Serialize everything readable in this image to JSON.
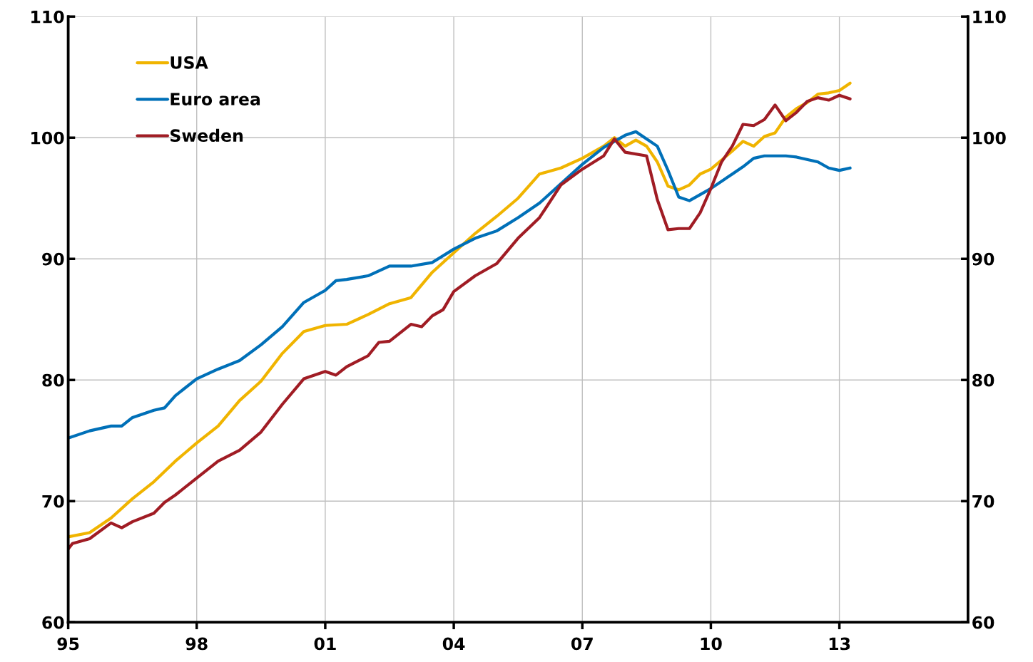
{
  "chart_data": {
    "type": "line",
    "xlim": [
      1995,
      2016
    ],
    "xticks": [
      {
        "value": 1995,
        "label": "95"
      },
      {
        "value": 1998,
        "label": "98"
      },
      {
        "value": 2001,
        "label": "01"
      },
      {
        "value": 2004,
        "label": "04"
      },
      {
        "value": 2007,
        "label": "07"
      },
      {
        "value": 2010,
        "label": "10"
      },
      {
        "value": 2013,
        "label": "13"
      }
    ],
    "ylim": [
      60,
      110
    ],
    "yticks": [
      60,
      70,
      80,
      90,
      100,
      110
    ],
    "y2lim": [
      60,
      110
    ],
    "y2ticks": [
      60,
      70,
      80,
      90,
      100,
      110
    ],
    "grid": true,
    "legend": "top left",
    "series": [
      {
        "name": "USA",
        "color": "#f0b400",
        "x": [
          1995,
          1995.5,
          1996,
          1996.5,
          1997,
          1997.5,
          1998,
          1998.5,
          1999,
          1999.5,
          2000,
          2000.5,
          2001,
          2001.5,
          2002,
          2002.5,
          2003,
          2003.5,
          2004,
          2004.5,
          2005,
          2005.5,
          2006,
          2006.5,
          2007,
          2007.5,
          2007.75,
          2008,
          2008.25,
          2008.5,
          2008.75,
          2009,
          2009.25,
          2009.5,
          2009.75,
          2010,
          2010.5,
          2010.75,
          2011,
          2011.25,
          2011.5,
          2011.75,
          2012,
          2012.25,
          2012.5,
          2012.75,
          2013,
          2013.25
        ],
        "values": [
          67.05,
          67.4,
          68.6,
          70.2,
          71.6,
          73.3,
          74.8,
          76.2,
          78.3,
          79.9,
          82.2,
          84.0,
          84.5,
          84.6,
          85.4,
          86.3,
          86.8,
          88.9,
          90.5,
          92.1,
          93.5,
          95.0,
          97.0,
          97.5,
          98.3,
          99.3,
          100.0,
          99.3,
          99.8,
          99.3,
          98.0,
          96.0,
          95.7,
          96.1,
          97.0,
          97.4,
          98.9,
          99.7,
          99.3,
          100.1,
          100.4,
          101.7,
          102.4,
          102.9,
          103.6,
          103.7,
          103.9,
          104.5
        ]
      },
      {
        "name": "Euro area",
        "color": "#0070b8",
        "x": [
          1995,
          1995.5,
          1996,
          1996.25,
          1996.5,
          1997,
          1997.25,
          1997.5,
          1998,
          1998.5,
          1999,
          1999.5,
          2000,
          2000.5,
          2001,
          2001.25,
          2001.5,
          2002,
          2002.5,
          2003,
          2003.5,
          2004,
          2004.5,
          2005,
          2005.5,
          2006,
          2006.5,
          2007,
          2007.5,
          2008,
          2008.25,
          2008.5,
          2008.75,
          2009,
          2009.25,
          2009.5,
          2010,
          2010.5,
          2010.75,
          2011,
          2011.25,
          2011.75,
          2012,
          2012.5,
          2012.75,
          2013,
          2013.25
        ],
        "values": [
          75.2,
          75.8,
          76.2,
          76.2,
          76.9,
          77.5,
          77.7,
          78.7,
          80.1,
          80.9,
          81.6,
          82.9,
          84.4,
          86.4,
          87.4,
          88.2,
          88.3,
          88.6,
          89.4,
          89.4,
          89.7,
          90.8,
          91.7,
          92.3,
          93.4,
          94.6,
          96.2,
          97.8,
          99.2,
          100.2,
          100.5,
          99.9,
          99.3,
          97.3,
          95.1,
          94.8,
          95.8,
          97.0,
          97.6,
          98.3,
          98.5,
          98.5,
          98.4,
          98.0,
          97.5,
          97.3,
          97.5
        ]
      },
      {
        "name": "Sweden",
        "color": "#a01c24",
        "x": [
          1995,
          1995.1,
          1995.5,
          1996,
          1996.25,
          1996.5,
          1997,
          1997.25,
          1997.5,
          1998,
          1998.5,
          1999,
          1999.5,
          2000,
          2000.5,
          2001,
          2001.25,
          2001.5,
          2002,
          2002.25,
          2002.5,
          2003,
          2003.25,
          2003.5,
          2003.75,
          2004,
          2004.5,
          2005,
          2005.5,
          2006,
          2006.5,
          2007,
          2007.5,
          2007.75,
          2008,
          2008.5,
          2008.75,
          2009,
          2009.25,
          2009.5,
          2009.75,
          2010,
          2010.25,
          2010.5,
          2010.75,
          2011,
          2011.25,
          2011.5,
          2011.75,
          2012,
          2012.25,
          2012.5,
          2012.75,
          2013,
          2013.25
        ],
        "values": [
          66.05,
          66.5,
          66.9,
          68.2,
          67.8,
          68.3,
          69.0,
          69.9,
          70.5,
          71.9,
          73.3,
          74.2,
          75.7,
          78.0,
          80.1,
          80.7,
          80.4,
          81.1,
          82.0,
          83.1,
          83.2,
          84.6,
          84.4,
          85.3,
          85.8,
          87.3,
          88.6,
          89.6,
          91.7,
          93.4,
          96.1,
          97.4,
          98.5,
          99.9,
          98.8,
          98.5,
          94.9,
          92.4,
          92.5,
          92.5,
          93.8,
          95.8,
          98.0,
          99.3,
          101.1,
          101.0,
          101.5,
          102.7,
          101.4,
          102.1,
          103.0,
          103.3,
          103.1,
          103.5,
          103.2
        ]
      }
    ]
  }
}
